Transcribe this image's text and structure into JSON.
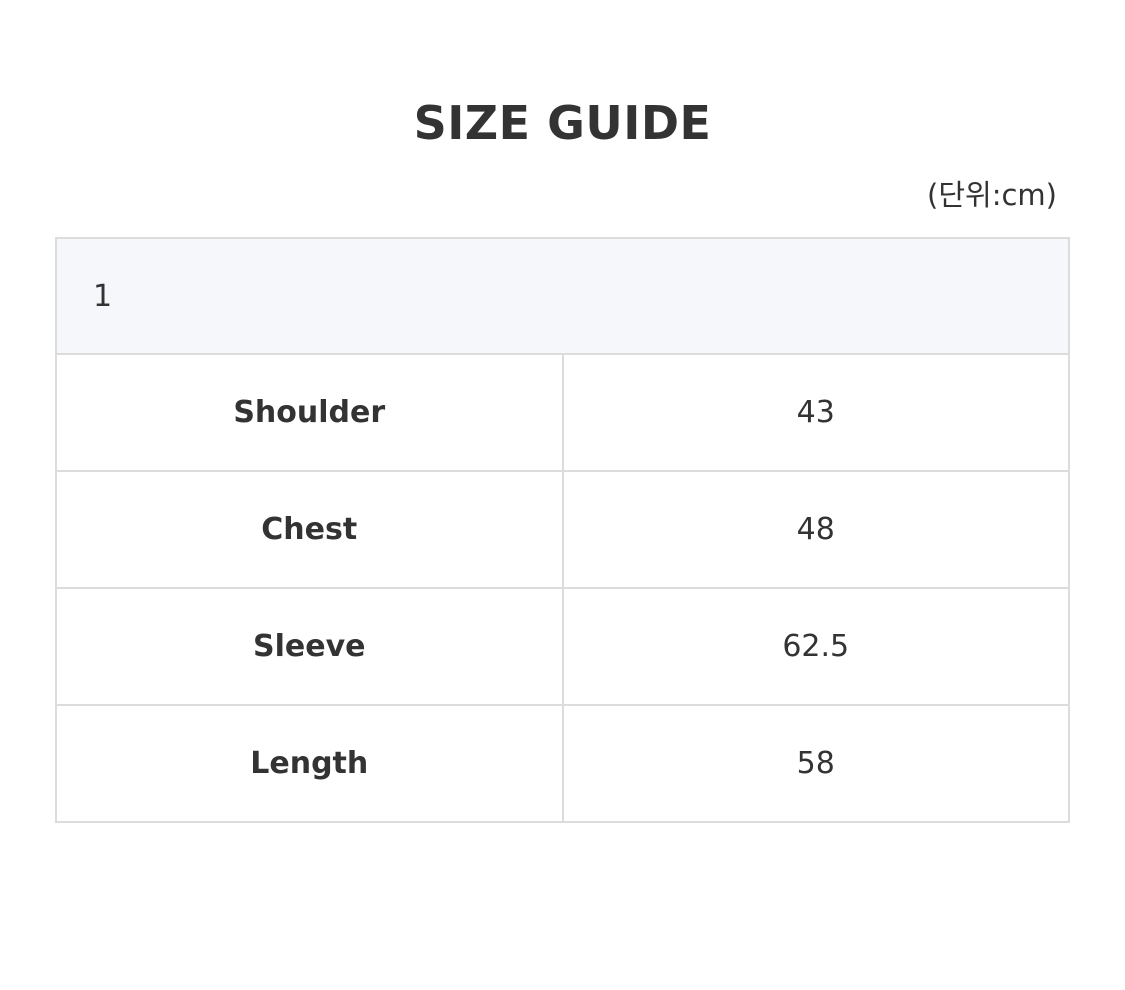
{
  "title": "SIZE GUIDE",
  "unit": "(단위:cm)",
  "table": {
    "header": "1",
    "rows": [
      {
        "label": "Shoulder",
        "value": "43"
      },
      {
        "label": "Chest",
        "value": "48"
      },
      {
        "label": "Sleeve",
        "value": "62.5"
      },
      {
        "label": "Length",
        "value": "58"
      }
    ]
  }
}
